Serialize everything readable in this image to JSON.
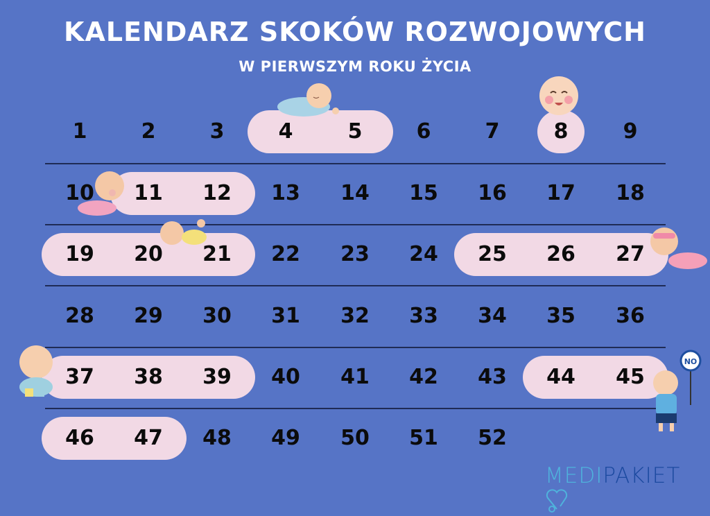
{
  "header": {
    "title": "KALENDARZ SKOKÓW ROZWOJOWYCH",
    "subtitle": "W PIERWSZYM ROKU ŻYCIA"
  },
  "calendar": {
    "weeks_per_row": 9,
    "weeks": [
      1,
      2,
      3,
      4,
      5,
      6,
      7,
      8,
      9,
      10,
      11,
      12,
      13,
      14,
      15,
      16,
      17,
      18,
      19,
      20,
      21,
      22,
      23,
      24,
      25,
      26,
      27,
      28,
      29,
      30,
      31,
      32,
      33,
      34,
      35,
      36,
      37,
      38,
      39,
      40,
      41,
      42,
      43,
      44,
      45,
      46,
      47,
      48,
      49,
      50,
      51,
      52
    ],
    "highlighted_ranges": [
      [
        4,
        5
      ],
      [
        8,
        8
      ],
      [
        11,
        12
      ],
      [
        19,
        21
      ],
      [
        25,
        27
      ],
      [
        37,
        39
      ],
      [
        44,
        45
      ],
      [
        46,
        47
      ]
    ]
  },
  "sign": {
    "text": "NO"
  },
  "logo": {
    "part1": "MEDI",
    "part2": "PAKIET"
  },
  "colors": {
    "background": "#5674c6",
    "highlight": "#f2d9e5",
    "text": "#0b0b0b",
    "title": "#ffffff",
    "logo_light": "#4fb3dc",
    "logo_dark": "#1c4aa0"
  }
}
